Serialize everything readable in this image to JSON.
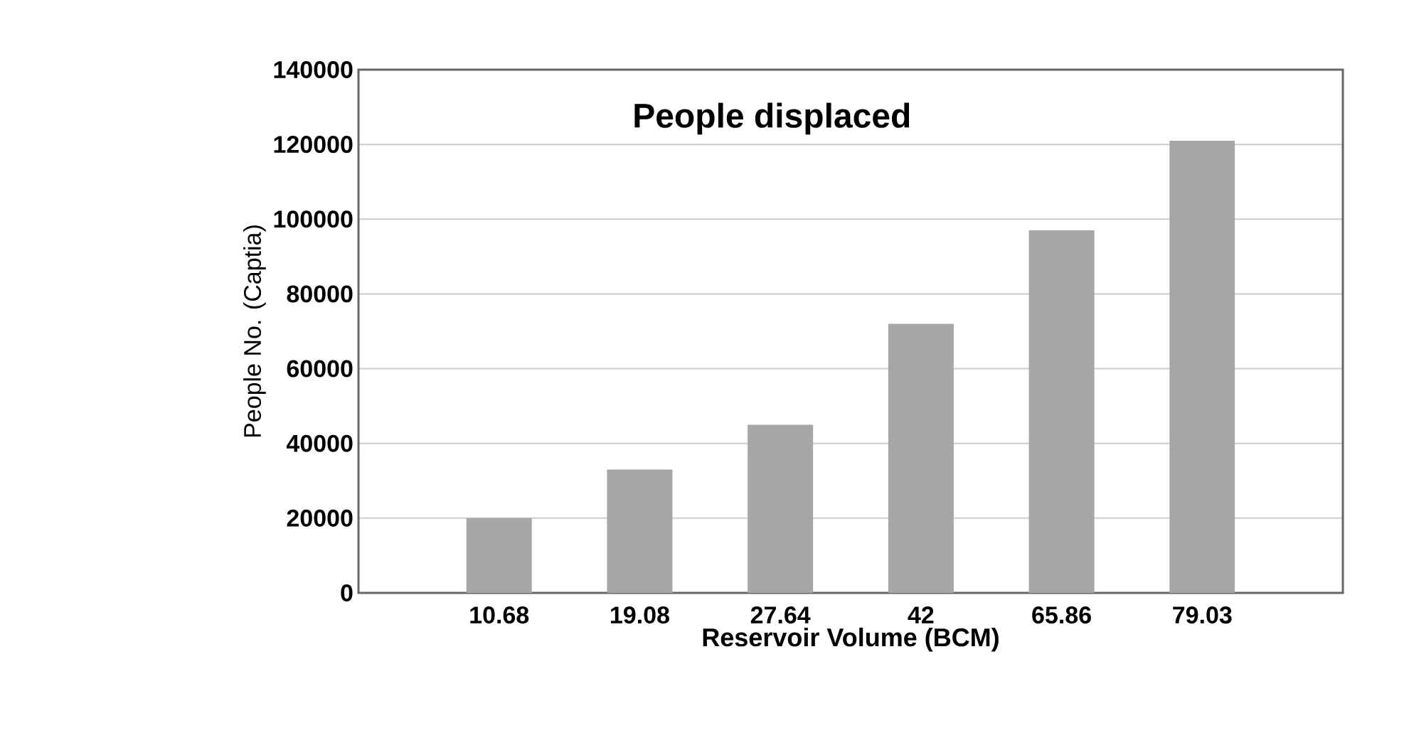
{
  "chart_data": {
    "type": "bar",
    "title": "People displaced",
    "xlabel": "Reservoir Volume (BCM)",
    "ylabel": "People No. (Captia)",
    "categories": [
      "10.68",
      "19.08",
      "27.64",
      "42",
      "65.86",
      "79.03"
    ],
    "values": [
      20000,
      33000,
      45000,
      72000,
      97000,
      121000
    ],
    "color": "#a6a6a6",
    "ylim": [
      0,
      140000
    ],
    "yticks": [
      0,
      20000,
      40000,
      60000,
      80000,
      100000,
      120000,
      140000
    ],
    "grid": "y"
  }
}
